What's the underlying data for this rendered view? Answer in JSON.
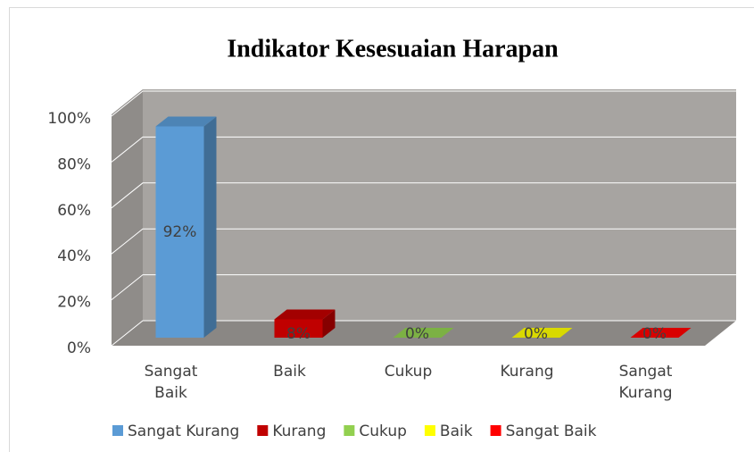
{
  "chart_data": {
    "type": "bar3d",
    "title": "Indikator Kesesuaian Harapan",
    "categories": [
      "Sangat Baik",
      "Baik",
      "Cukup",
      "Kurang",
      "Sangat Kurang"
    ],
    "series": [
      {
        "name": "Sangat Kurang",
        "color": "#5b9bd5",
        "values": [
          92,
          null,
          null,
          null,
          null
        ],
        "value_labels": [
          "92%",
          null,
          null,
          null,
          null
        ]
      },
      {
        "name": "Kurang",
        "color": "#c00000",
        "values": [
          null,
          8,
          null,
          null,
          null
        ],
        "value_labels": [
          null,
          "8%",
          null,
          null,
          null
        ]
      },
      {
        "name": "Cukup",
        "color": "#92d050",
        "values": [
          null,
          null,
          0,
          null,
          null
        ],
        "value_labels": [
          null,
          null,
          "0%",
          null,
          null
        ]
      },
      {
        "name": "Baik",
        "color": "#ffff00",
        "values": [
          null,
          null,
          null,
          0,
          null
        ],
        "value_labels": [
          null,
          null,
          null,
          "0%",
          null
        ]
      },
      {
        "name": "Sangat Baik",
        "color": "#ff0000",
        "values": [
          null,
          null,
          null,
          null,
          0
        ],
        "value_labels": [
          null,
          null,
          null,
          null,
          "0%"
        ]
      }
    ],
    "ylim": [
      0,
      100
    ],
    "yticks": [
      {
        "value": 0,
        "label": "0%"
      },
      {
        "value": 20,
        "label": "20%"
      },
      {
        "value": 40,
        "label": "40%"
      },
      {
        "value": 60,
        "label": "60%"
      },
      {
        "value": 80,
        "label": "80%"
      },
      {
        "value": 100,
        "label": "100%"
      }
    ],
    "grid": true,
    "legend": "bottom"
  }
}
